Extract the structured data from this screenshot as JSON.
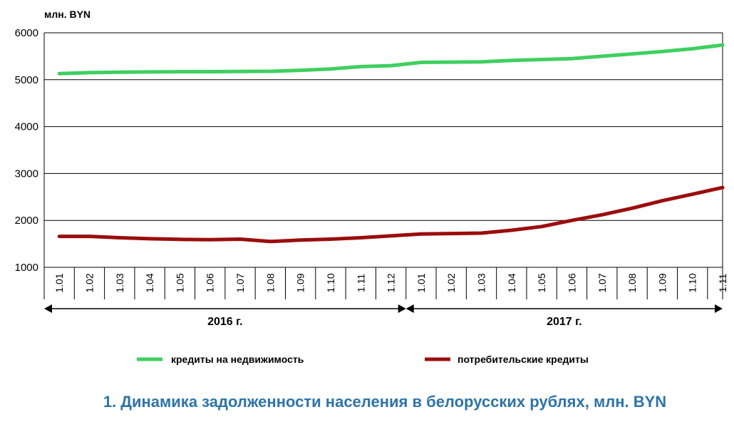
{
  "chart_data": {
    "type": "line",
    "unit_label": "млн. BYN",
    "title": "1. Динамика задолженности населения в белорусских рублях, млн. BYN",
    "ylim": [
      1000,
      6000
    ],
    "y_ticks": [
      1000,
      2000,
      3000,
      4000,
      5000,
      6000
    ],
    "categories": [
      "1.01",
      "1.02",
      "1.03",
      "1.04",
      "1.05",
      "1.06",
      "1.07",
      "1.08",
      "1.09",
      "1.10",
      "1.11",
      "1.12",
      "1.01",
      "1.02",
      "1.03",
      "1.04",
      "1.05",
      "1.06",
      "1.07",
      "1.08",
      "1.09",
      "1.10",
      "1.11"
    ],
    "year_groups": [
      {
        "label": "2016 г.",
        "start": 0,
        "end": 11
      },
      {
        "label": "2017 г.",
        "start": 12,
        "end": 22
      }
    ],
    "grid": true,
    "legend_position": "bottom",
    "series": [
      {
        "name": "кредиты на недвижимость",
        "color": "#3fcf5f",
        "values": [
          5130,
          5150,
          5160,
          5165,
          5170,
          5170,
          5175,
          5180,
          5200,
          5230,
          5280,
          5300,
          5370,
          5375,
          5380,
          5410,
          5430,
          5450,
          5500,
          5550,
          5600,
          5660,
          5740
        ]
      },
      {
        "name": "потребительские кредиты",
        "color": "#9b0d0d",
        "values": [
          1660,
          1660,
          1630,
          1610,
          1595,
          1590,
          1600,
          1550,
          1580,
          1600,
          1630,
          1670,
          1710,
          1720,
          1730,
          1790,
          1870,
          2000,
          2120,
          2260,
          2420,
          2560,
          2700
        ]
      }
    ]
  }
}
